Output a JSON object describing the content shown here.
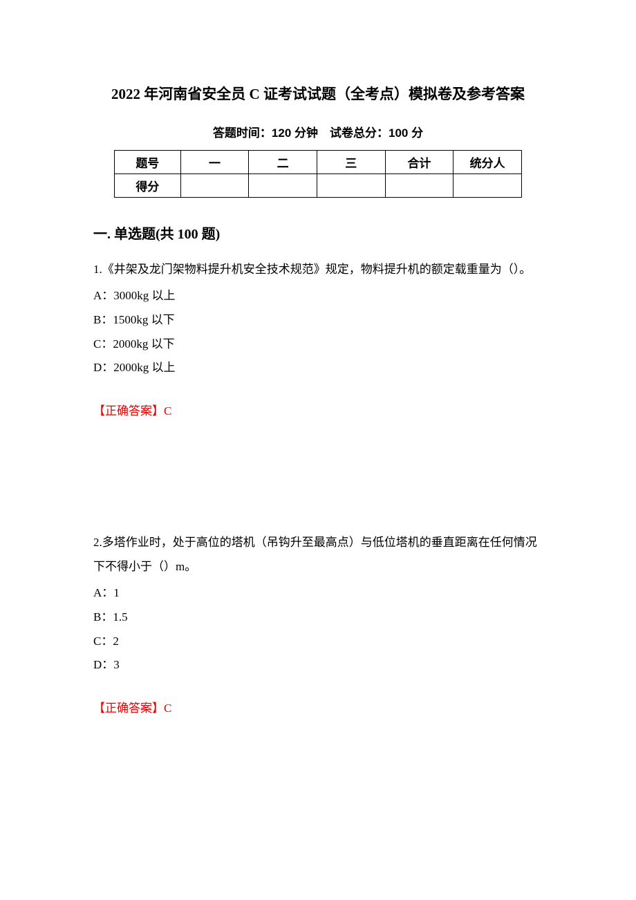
{
  "title": "2022 年河南省安全员 C 证考试试题（全考点）模拟卷及参考答案",
  "subtitle": "答题时间：120 分钟 试卷总分：100 分",
  "table": {
    "headers": [
      "题号",
      "一",
      "二",
      "三",
      "合计",
      "统分人"
    ],
    "row_label": "得分"
  },
  "section_heading": "一. 单选题(共 100 题)",
  "questions": [
    {
      "text": "1.《井架及龙门架物料提升机安全技术规范》规定，物料提升机的额定载重量为（）。",
      "options": [
        "A：3000kg 以上",
        "B：1500kg 以下",
        "C：2000kg 以下",
        "D：2000kg 以上"
      ],
      "answer": "【正确答案】C"
    },
    {
      "text": "2.多塔作业时，处于高位的塔机（吊钩升至最高点）与低位塔机的垂直距离在任何情况下不得小于（）m。",
      "options": [
        "A：1",
        "B：1.5",
        "C：2",
        "D：3"
      ],
      "answer": "【正确答案】C"
    }
  ]
}
